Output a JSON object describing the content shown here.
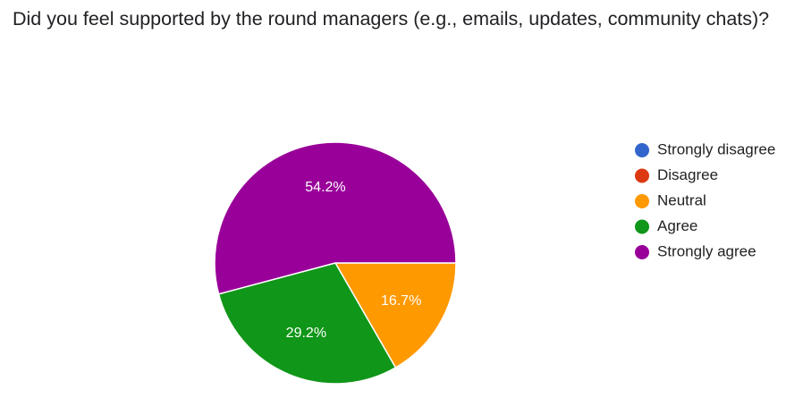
{
  "chart_data": {
    "type": "pie",
    "title": "Did you feel supported by the round managers (e.g., emails, updates, community chats)?",
    "categories": [
      "Strongly disagree",
      "Disagree",
      "Neutral",
      "Agree",
      "Strongly agree"
    ],
    "values": [
      0,
      0,
      16.7,
      29.2,
      54.2
    ],
    "value_labels": [
      null,
      null,
      "16.7%",
      "29.2%",
      "54.2%"
    ],
    "colors": [
      "#3366cc",
      "#dc3912",
      "#ff9900",
      "#109618",
      "#990099"
    ],
    "legend": "right"
  }
}
